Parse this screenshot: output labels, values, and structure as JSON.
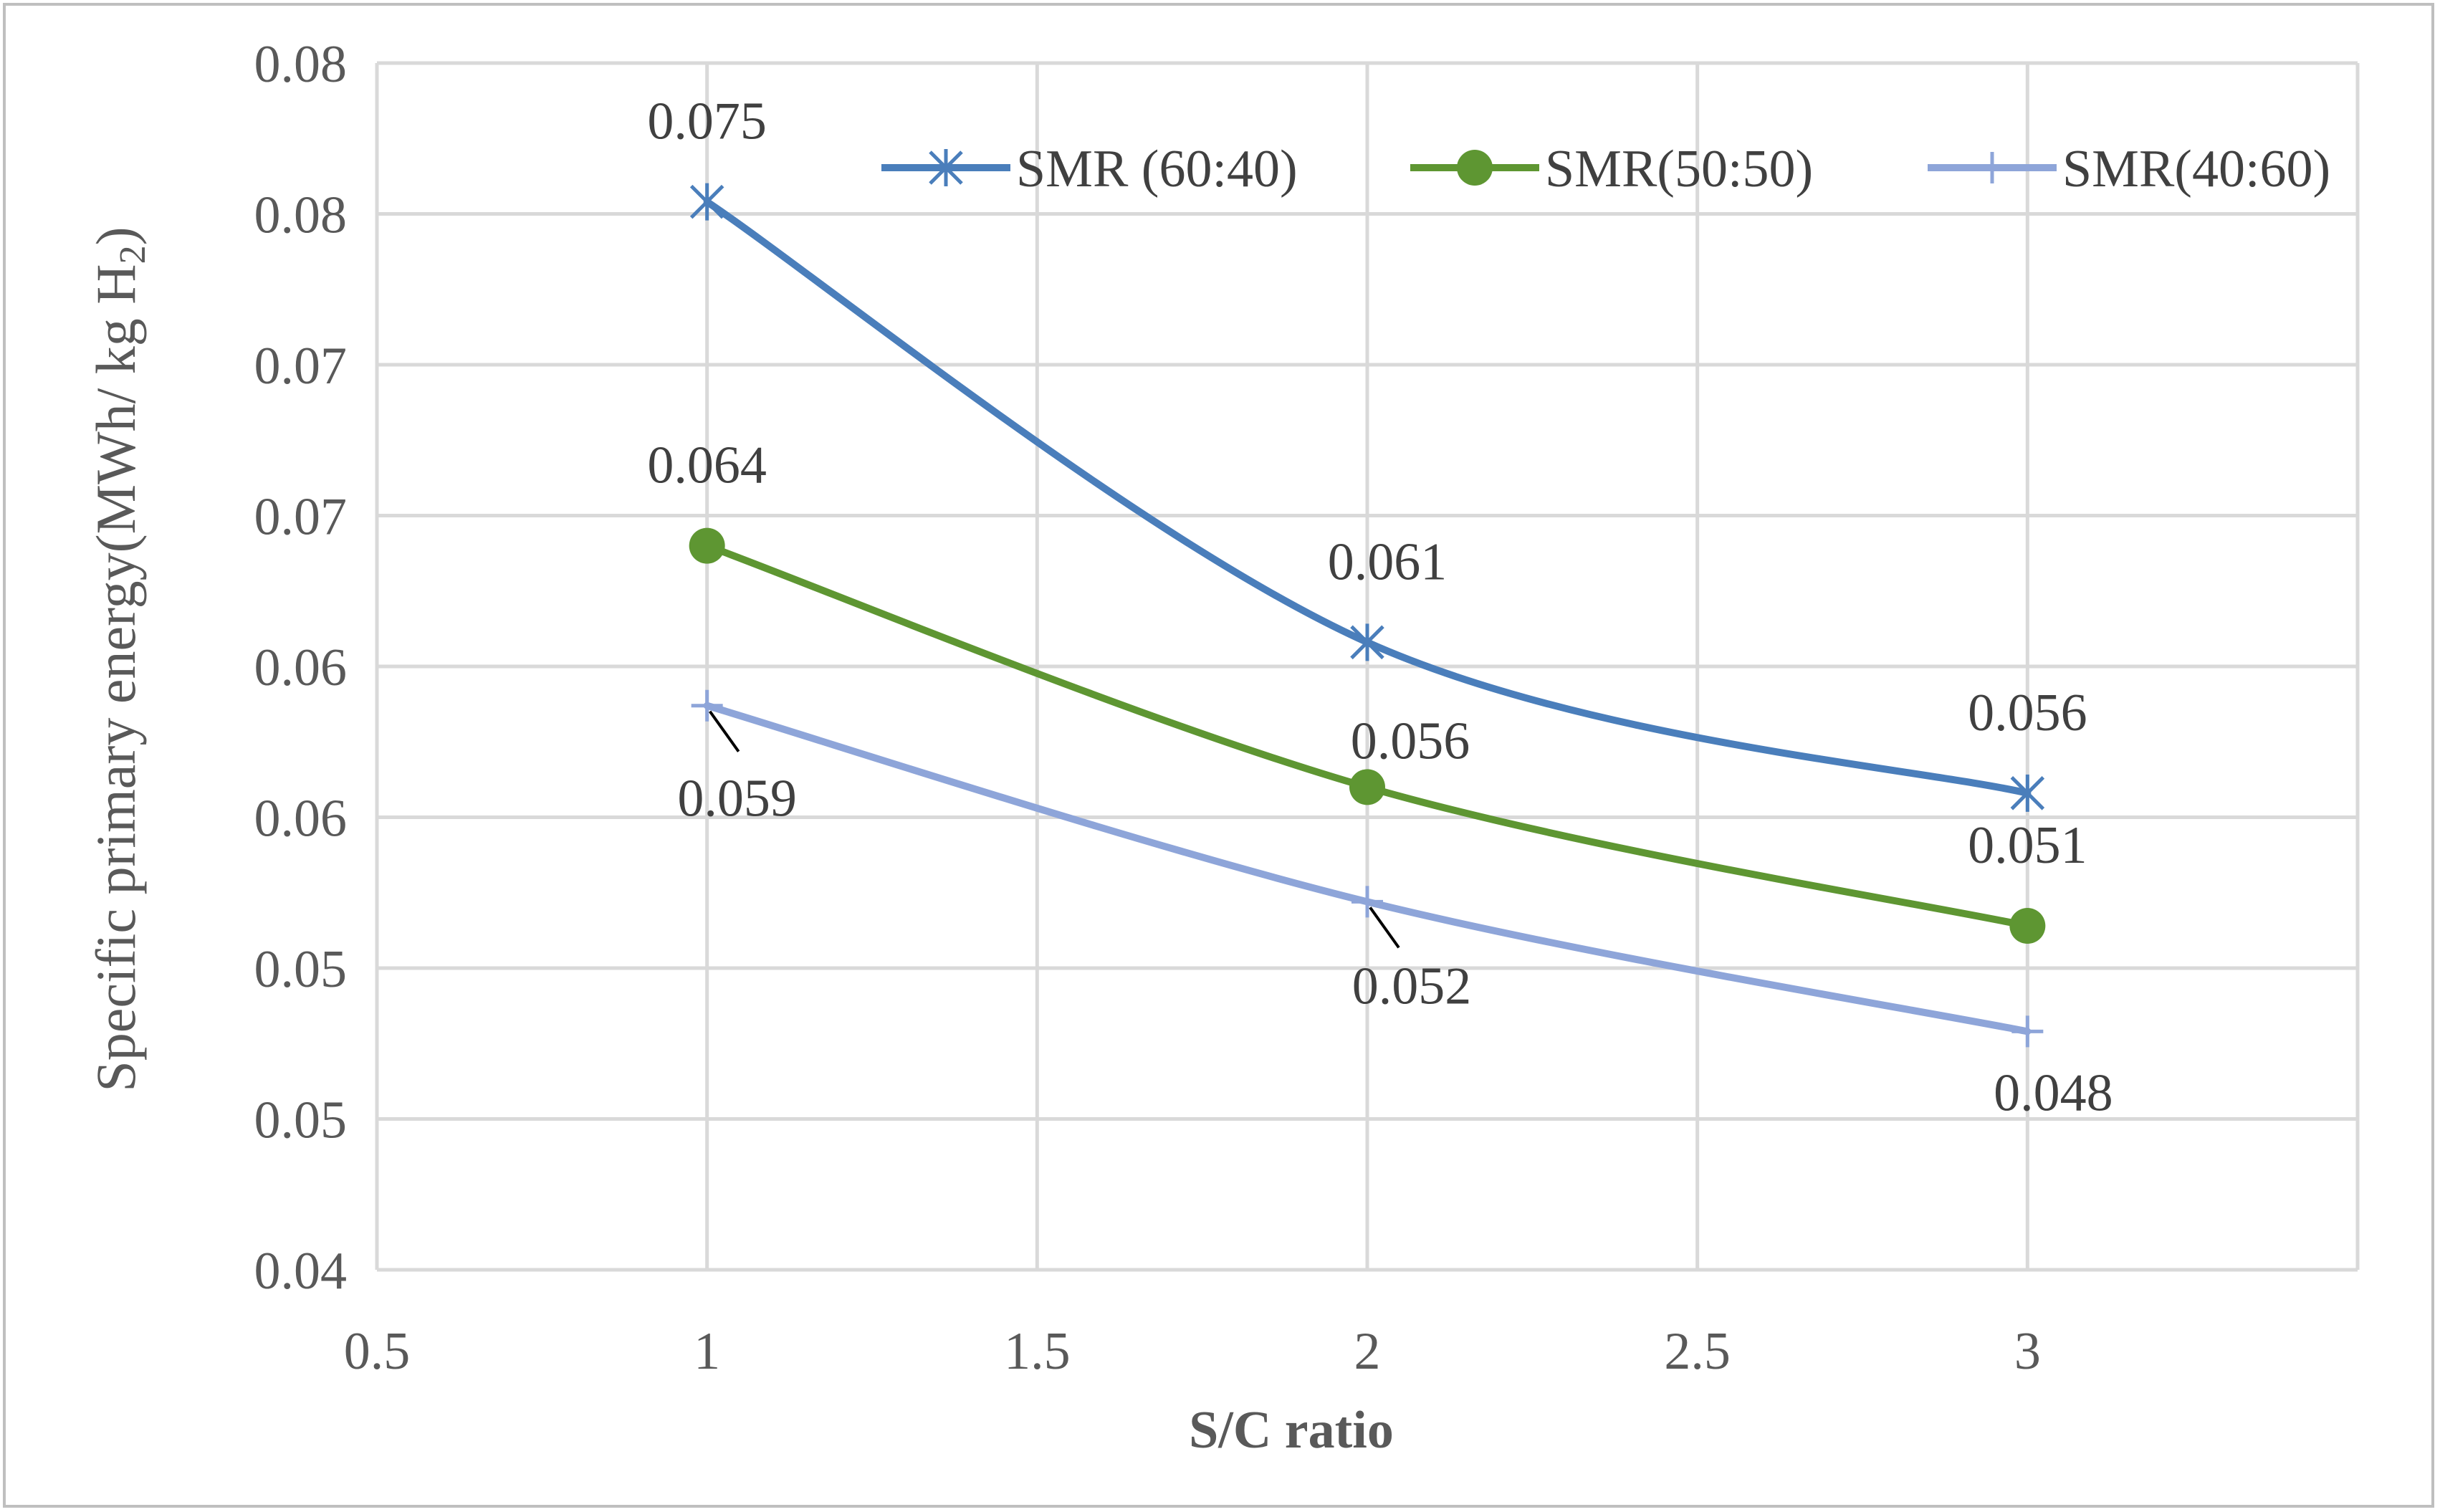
{
  "chart_data": {
    "type": "line",
    "title": "",
    "xlabel": "S/C ratio",
    "ylabel": "Specific primary  energy(MWh/ kg H",
    "ylabel_subscript": "2",
    "ylabel_close": ")",
    "xlim": [
      0.5,
      3.5
    ],
    "ylim": [
      0.04,
      0.08
    ],
    "x_ticks": [
      0.5,
      1,
      1.5,
      2,
      2.5,
      3
    ],
    "x_tick_labels": [
      "0.5",
      "1",
      "1.5",
      "2",
      "2.5",
      "3"
    ],
    "y_tick_labels": [
      "0.04",
      "0.05",
      "0.05",
      "0.06",
      "0.06",
      "0.07",
      "0.07",
      "0.08",
      "0.08"
    ],
    "grid": true,
    "legend_position": "top-right",
    "series": [
      {
        "name": "SMR (60:40)",
        "color": "#4a7ebb",
        "marker": "star",
        "x": [
          1,
          2,
          3
        ],
        "y": [
          0.0754,
          0.0608,
          0.0558
        ],
        "labels": [
          "0.075",
          "0.061",
          "0.056"
        ]
      },
      {
        "name": "SMR(50:50)",
        "color": "#5e9632",
        "marker": "circle",
        "x": [
          1,
          2,
          3
        ],
        "y": [
          0.064,
          0.056,
          0.0514
        ],
        "labels": [
          "0.064",
          "0.056",
          "0.051"
        ]
      },
      {
        "name": "SMR(40:60)",
        "color": "#8ea5d9",
        "marker": "plus",
        "x": [
          1,
          2,
          3
        ],
        "y": [
          0.0587,
          0.0522,
          0.0479
        ],
        "labels": [
          "0.059",
          "0.052",
          "0.048"
        ]
      }
    ]
  }
}
